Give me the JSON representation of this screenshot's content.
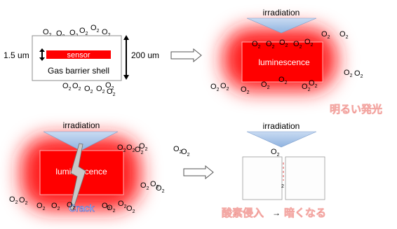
{
  "panel1": {
    "sensor_label": "sensor",
    "shell_label": "Gas barrier shell",
    "thickness_label": "1.5 um",
    "size_label": "200 um",
    "o2_labels": [
      "O2 O2 O2O2O2O2",
      "O2O2  O2 O2O2"
    ]
  },
  "panel2": {
    "irradiation_label": "irradiation",
    "luminescence_label": "luminescence",
    "caption_jp": "明るい発光"
  },
  "panel3": {
    "irradiation_label": "irradiation",
    "luminescence_label": "luminescence",
    "crack_label": "Crack"
  },
  "panel4": {
    "irradiation_label": "irradiation",
    "caption_jp_left": "酸素侵入",
    "caption_jp_arrow": "→",
    "caption_jp_right": "暗くなる"
  },
  "colors": {
    "sensor_red": "#ff0000",
    "glow_red": "#ff1a1a",
    "arrow_blue": "#a9c5e8",
    "jp_red": "#e0342c"
  }
}
